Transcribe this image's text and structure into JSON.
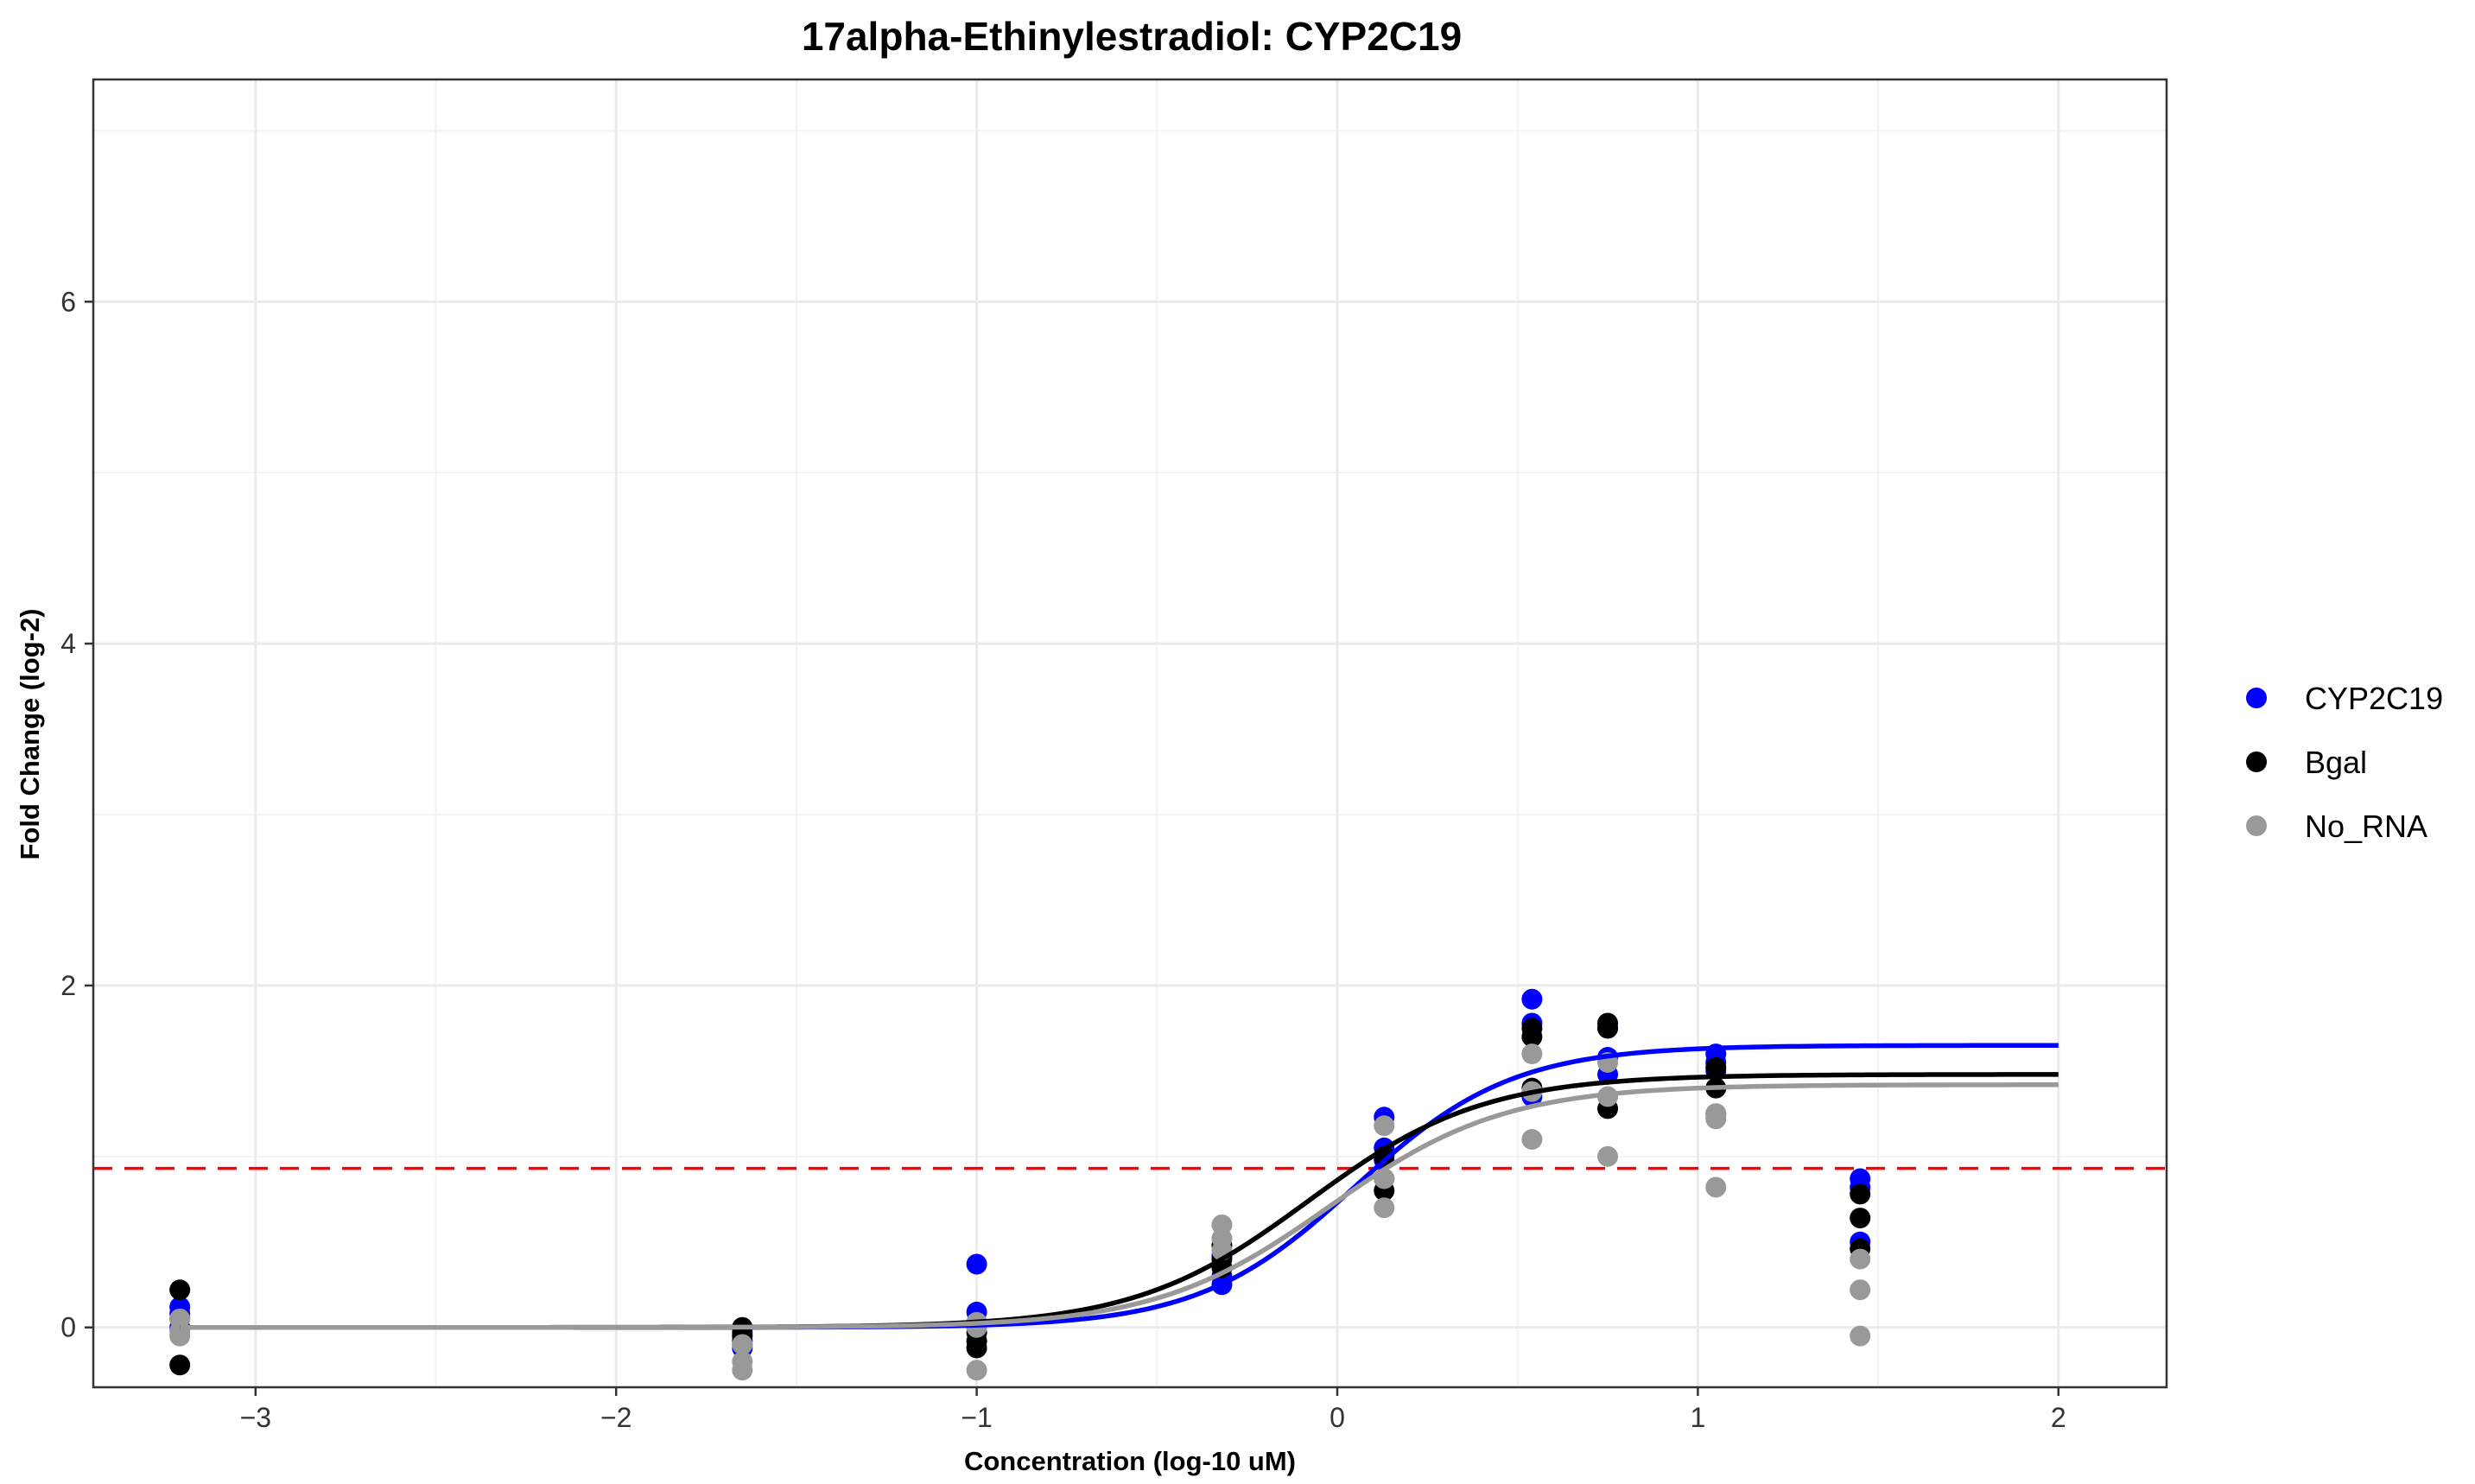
{
  "chart_data": {
    "type": "scatter",
    "title": "17alpha-Ethinylestradiol: CYP2C19",
    "xlabel": "Concentration (log-10 uM)",
    "ylabel": "Fold Change (log-2)",
    "xlim": [
      -3.45,
      2.3
    ],
    "ylim": [
      -0.35,
      7.3
    ],
    "x_ticks": [
      -3,
      -2,
      -1,
      0,
      1,
      2
    ],
    "y_ticks": [
      0,
      2,
      4,
      6
    ],
    "grid": true,
    "legend_position": "right",
    "threshold": {
      "y": 0.93,
      "color": "#ff0000",
      "style": "dashed"
    },
    "series": [
      {
        "name": "CYP2C19",
        "color": "#0000ff",
        "points": [
          [
            -3.21,
            0.12
          ],
          [
            -3.21,
            0.08
          ],
          [
            -3.21,
            0.0
          ],
          [
            -1.65,
            -0.03
          ],
          [
            -1.65,
            -0.08
          ],
          [
            -1.65,
            -0.12
          ],
          [
            -1.0,
            0.37
          ],
          [
            -1.0,
            0.09
          ],
          [
            -1.0,
            0.02
          ],
          [
            -0.32,
            0.25
          ],
          [
            -0.32,
            0.3
          ],
          [
            -0.32,
            0.42
          ],
          [
            0.13,
            1.23
          ],
          [
            0.13,
            1.05
          ],
          [
            0.13,
            0.98
          ],
          [
            0.54,
            1.92
          ],
          [
            0.54,
            1.78
          ],
          [
            0.54,
            1.35
          ],
          [
            0.75,
            1.75
          ],
          [
            0.75,
            1.58
          ],
          [
            0.75,
            1.48
          ],
          [
            1.05,
            1.6
          ],
          [
            1.05,
            1.55
          ],
          [
            1.05,
            1.5
          ],
          [
            1.45,
            0.87
          ],
          [
            1.45,
            0.82
          ],
          [
            1.45,
            0.5
          ]
        ],
        "fit": {
          "bottom": 0.0,
          "top": 1.65,
          "ec50_log": 0.05,
          "hill": 2.0
        }
      },
      {
        "name": "Bgal",
        "color": "#000000",
        "points": [
          [
            -3.21,
            0.22
          ],
          [
            -3.21,
            -0.22
          ],
          [
            -3.21,
            0.05
          ],
          [
            -1.65,
            0.0
          ],
          [
            -1.65,
            -0.05
          ],
          [
            -1.65,
            -0.1
          ],
          [
            -1.0,
            -0.03
          ],
          [
            -1.0,
            -0.08
          ],
          [
            -1.0,
            -0.12
          ],
          [
            -0.32,
            0.35
          ],
          [
            -0.32,
            0.4
          ],
          [
            -0.32,
            0.48
          ],
          [
            0.13,
            0.8
          ],
          [
            0.13,
            0.87
          ],
          [
            0.13,
            1.0
          ],
          [
            0.54,
            1.75
          ],
          [
            0.54,
            1.7
          ],
          [
            0.54,
            1.4
          ],
          [
            0.75,
            1.78
          ],
          [
            0.75,
            1.75
          ],
          [
            0.75,
            1.28
          ],
          [
            1.05,
            1.52
          ],
          [
            1.05,
            1.4
          ],
          [
            1.05,
            1.25
          ],
          [
            1.45,
            0.78
          ],
          [
            1.45,
            0.64
          ],
          [
            1.45,
            0.46
          ]
        ],
        "fit": {
          "bottom": 0.0,
          "top": 1.48,
          "ec50_log": -0.08,
          "hill": 1.8
        }
      },
      {
        "name": "No_RNA",
        "color": "#999999",
        "points": [
          [
            -3.21,
            0.05
          ],
          [
            -3.21,
            -0.05
          ],
          [
            -3.21,
            -0.02
          ],
          [
            -1.65,
            -0.1
          ],
          [
            -1.65,
            -0.2
          ],
          [
            -1.65,
            -0.25
          ],
          [
            -1.0,
            -0.25
          ],
          [
            -1.0,
            0.0
          ],
          [
            -1.0,
            0.03
          ],
          [
            -0.32,
            0.6
          ],
          [
            -0.32,
            0.52
          ],
          [
            -0.32,
            0.45
          ],
          [
            0.13,
            1.18
          ],
          [
            0.13,
            0.87
          ],
          [
            0.13,
            0.7
          ],
          [
            0.54,
            1.6
          ],
          [
            0.54,
            1.38
          ],
          [
            0.54,
            1.1
          ],
          [
            0.75,
            1.55
          ],
          [
            0.75,
            1.35
          ],
          [
            0.75,
            1.0
          ],
          [
            1.05,
            1.25
          ],
          [
            1.05,
            1.22
          ],
          [
            1.05,
            0.82
          ],
          [
            1.45,
            0.4
          ],
          [
            1.45,
            0.22
          ],
          [
            1.45,
            -0.05
          ]
        ],
        "fit": {
          "bottom": 0.0,
          "top": 1.42,
          "ec50_log": -0.02,
          "hill": 1.8
        }
      }
    ]
  }
}
